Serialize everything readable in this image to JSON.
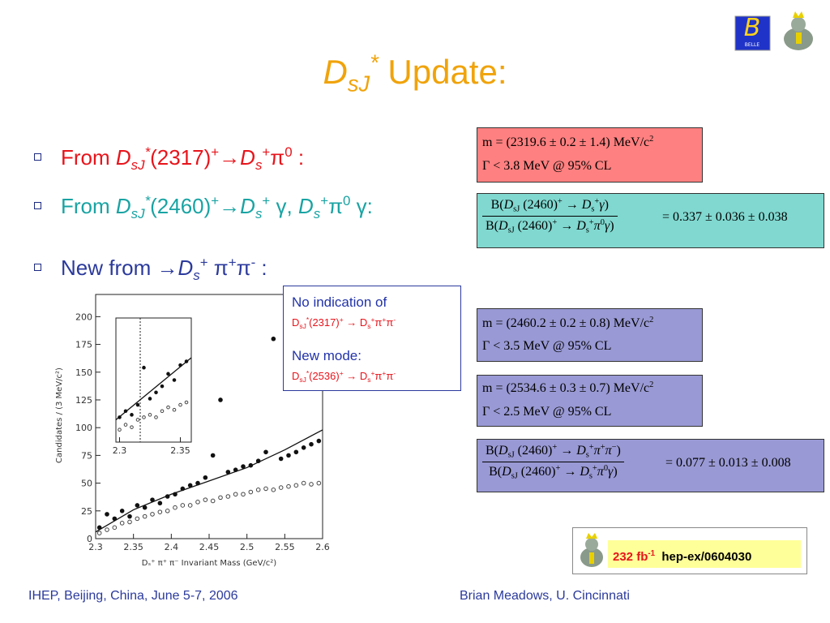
{
  "title": [
    "D",
    "sJ",
    "*",
    " Update:"
  ],
  "bullets": [
    [
      "From ",
      "D",
      "sJ",
      "*",
      "(2317)",
      "+",
      "→",
      "D",
      "s",
      "+",
      "π",
      "0",
      " :"
    ],
    [
      "From ",
      "D",
      "sJ",
      "*",
      "(2460)",
      "+",
      "→",
      "D",
      "s",
      "+",
      " γ",
      ", ",
      "D",
      "s",
      "+",
      "π",
      "0",
      " γ",
      ":"
    ],
    [
      "New from ",
      "→",
      "D",
      "s",
      "+",
      " π",
      "+",
      "π",
      "-",
      " :"
    ]
  ],
  "boxes": [
    {
      "mass": [
        "m = (2319.6 ± 0.2 ± 1.4) MeV/c",
        "2"
      ],
      "width": [
        "Γ < 3.8 MeV @ 95% CL"
      ]
    },
    {
      "numerator": [
        "B(",
        "D",
        "sJ",
        " (2460)",
        "+",
        " → ",
        "D",
        "s",
        "+",
        "γ",
        ")"
      ],
      "denominator": [
        "B(",
        "D",
        "sJ",
        " (2460)",
        "+",
        " → ",
        "D",
        "s",
        "+",
        "π",
        "0",
        "γ",
        ")"
      ],
      "result": "= 0.337 ± 0.036 ± 0.038"
    },
    {
      "mass": [
        "m = (2460.2 ± 0.2 ± 0.8) MeV/c",
        "2"
      ],
      "width": [
        "Γ < 3.5 MeV @ 95% CL"
      ]
    },
    {
      "mass": [
        "m = (2534.6 ± 0.3 ± 0.7) MeV/c",
        "2"
      ],
      "width": [
        "Γ < 2.5 MeV @ 95% CL"
      ]
    },
    {
      "numerator": [
        "B(",
        "D",
        "sJ",
        " (2460)",
        "+",
        " → ",
        "D",
        "s",
        "+",
        "π",
        "+",
        "π",
        "−",
        ")"
      ],
      "denominator": [
        "B(",
        "D",
        "sJ",
        " (2460)",
        "+",
        " → ",
        "D",
        "s",
        "+",
        "π",
        "0",
        "γ",
        ")"
      ],
      "result": "= 0.077 ± 0.013 ± 0.008"
    }
  ],
  "note": {
    "line1": "No indication of",
    "decay1": [
      "D",
      "sJ",
      "*",
      "(2317)",
      "+",
      " → D",
      "s",
      "+",
      "π",
      "+",
      "π",
      "-"
    ],
    "line2": "New mode:",
    "decay2": [
      "D",
      "sJ",
      "*",
      "(2536)",
      "+",
      " → D",
      "s",
      "+",
      "π",
      "+",
      "π",
      "-"
    ]
  },
  "badge": {
    "lumi": [
      "232 fb",
      "-1"
    ],
    "ref": "hep-ex/0604030"
  },
  "logo": {
    "letter": "B",
    "name": "BELLE"
  },
  "footer": {
    "left": "IHEP, Beijing, China, June 5-7, 2006",
    "right": "Brian Meadows, U. Cincinnati"
  },
  "chart_data": {
    "type": "scatter",
    "xlabel": "Dₛ⁺ π⁺ π⁻ Invariant Mass (GeV/c²)",
    "ylabel": "Candidates / (3 MeV/c²)",
    "xlim": [
      2.3,
      2.6
    ],
    "ylim": [
      0,
      220
    ],
    "xticks": [
      2.3,
      2.35,
      2.4,
      2.45,
      2.5,
      2.55,
      2.6
    ],
    "yticks": [
      0,
      25,
      50,
      75,
      100,
      125,
      150,
      175,
      200
    ],
    "series": [
      {
        "marker": "filled",
        "color": "#111111",
        "x": [
          2.305,
          2.315,
          2.325,
          2.335,
          2.345,
          2.355,
          2.365,
          2.375,
          2.385,
          2.395,
          2.405,
          2.415,
          2.425,
          2.435,
          2.445,
          2.455,
          2.465,
          2.475,
          2.485,
          2.495,
          2.505,
          2.515,
          2.525,
          2.535,
          2.545,
          2.555,
          2.565,
          2.575,
          2.585,
          2.595
        ],
        "values": [
          10,
          22,
          18,
          25,
          20,
          30,
          28,
          35,
          32,
          38,
          40,
          45,
          48,
          50,
          55,
          75,
          125,
          60,
          62,
          65,
          66,
          70,
          78,
          180,
          72,
          75,
          78,
          82,
          85,
          88
        ]
      },
      {
        "marker": "open",
        "color": "#444444",
        "x": [
          2.305,
          2.315,
          2.325,
          2.335,
          2.345,
          2.355,
          2.365,
          2.375,
          2.385,
          2.395,
          2.405,
          2.415,
          2.425,
          2.435,
          2.445,
          2.455,
          2.465,
          2.475,
          2.485,
          2.495,
          2.505,
          2.515,
          2.525,
          2.535,
          2.545,
          2.555,
          2.565,
          2.575,
          2.585,
          2.595
        ],
        "values": [
          5,
          8,
          10,
          14,
          15,
          18,
          20,
          22,
          24,
          25,
          28,
          30,
          30,
          33,
          35,
          34,
          37,
          38,
          40,
          40,
          42,
          44,
          45,
          44,
          46,
          47,
          48,
          50,
          49,
          50
        ]
      }
    ],
    "fit": {
      "color": "#111111",
      "x": [
        2.3,
        2.35,
        2.4,
        2.45,
        2.5,
        2.55,
        2.6
      ],
      "values": [
        6,
        26,
        40,
        52,
        64,
        80,
        98
      ]
    },
    "inset": {
      "xlim": [
        2.297,
        2.359
      ],
      "ylim": [
        0,
        100
      ],
      "xticks": [
        2.3,
        2.35
      ],
      "vline": 2.317,
      "series": [
        {
          "marker": "filled",
          "color": "#111111",
          "x": [
            2.3,
            2.305,
            2.31,
            2.315,
            2.32,
            2.325,
            2.33,
            2.335,
            2.34,
            2.345,
            2.35,
            2.355
          ],
          "values": [
            20,
            25,
            22,
            30,
            60,
            35,
            40,
            45,
            55,
            50,
            62,
            65
          ]
        },
        {
          "marker": "open",
          "color": "#444444",
          "x": [
            2.3,
            2.305,
            2.31,
            2.315,
            2.32,
            2.325,
            2.33,
            2.335,
            2.34,
            2.345,
            2.35,
            2.355
          ],
          "values": [
            10,
            14,
            12,
            18,
            20,
            22,
            20,
            25,
            28,
            26,
            30,
            32
          ]
        }
      ],
      "fit": {
        "x": [
          2.297,
          2.359
        ],
        "values": [
          18,
          68
        ]
      }
    }
  }
}
